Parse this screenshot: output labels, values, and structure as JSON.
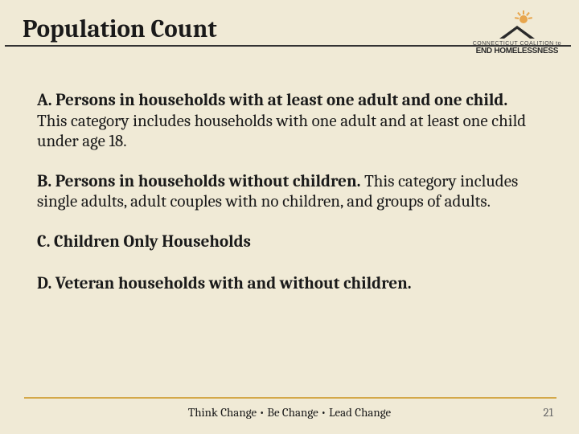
{
  "title": "Population Count",
  "logo": {
    "line1": "CONNECTICUT COALITION to",
    "line2": "END HOMELESSNESS"
  },
  "items": {
    "a_bold": "A.  Persons in households with at least one adult and one child.",
    "a_rest": " This category includes households with one adult and at least one child under age 18.",
    "b_bold": "B. Persons in households without children.",
    "b_rest": " This category includes single adults, adult couples with no children, and groups of adults.",
    "c_bold": "C. Children Only Households",
    "d_bold": "D. Veteran households with and without children."
  },
  "footer": {
    "tagline": "Think Change  •  Be Change  •  Lead Change",
    "page": "21"
  },
  "colors": {
    "background": "#f0ead6",
    "text": "#1a1a1a",
    "accent": "#d4a849",
    "sun": "#e8a64d",
    "pagenum": "#6b6b6b"
  }
}
